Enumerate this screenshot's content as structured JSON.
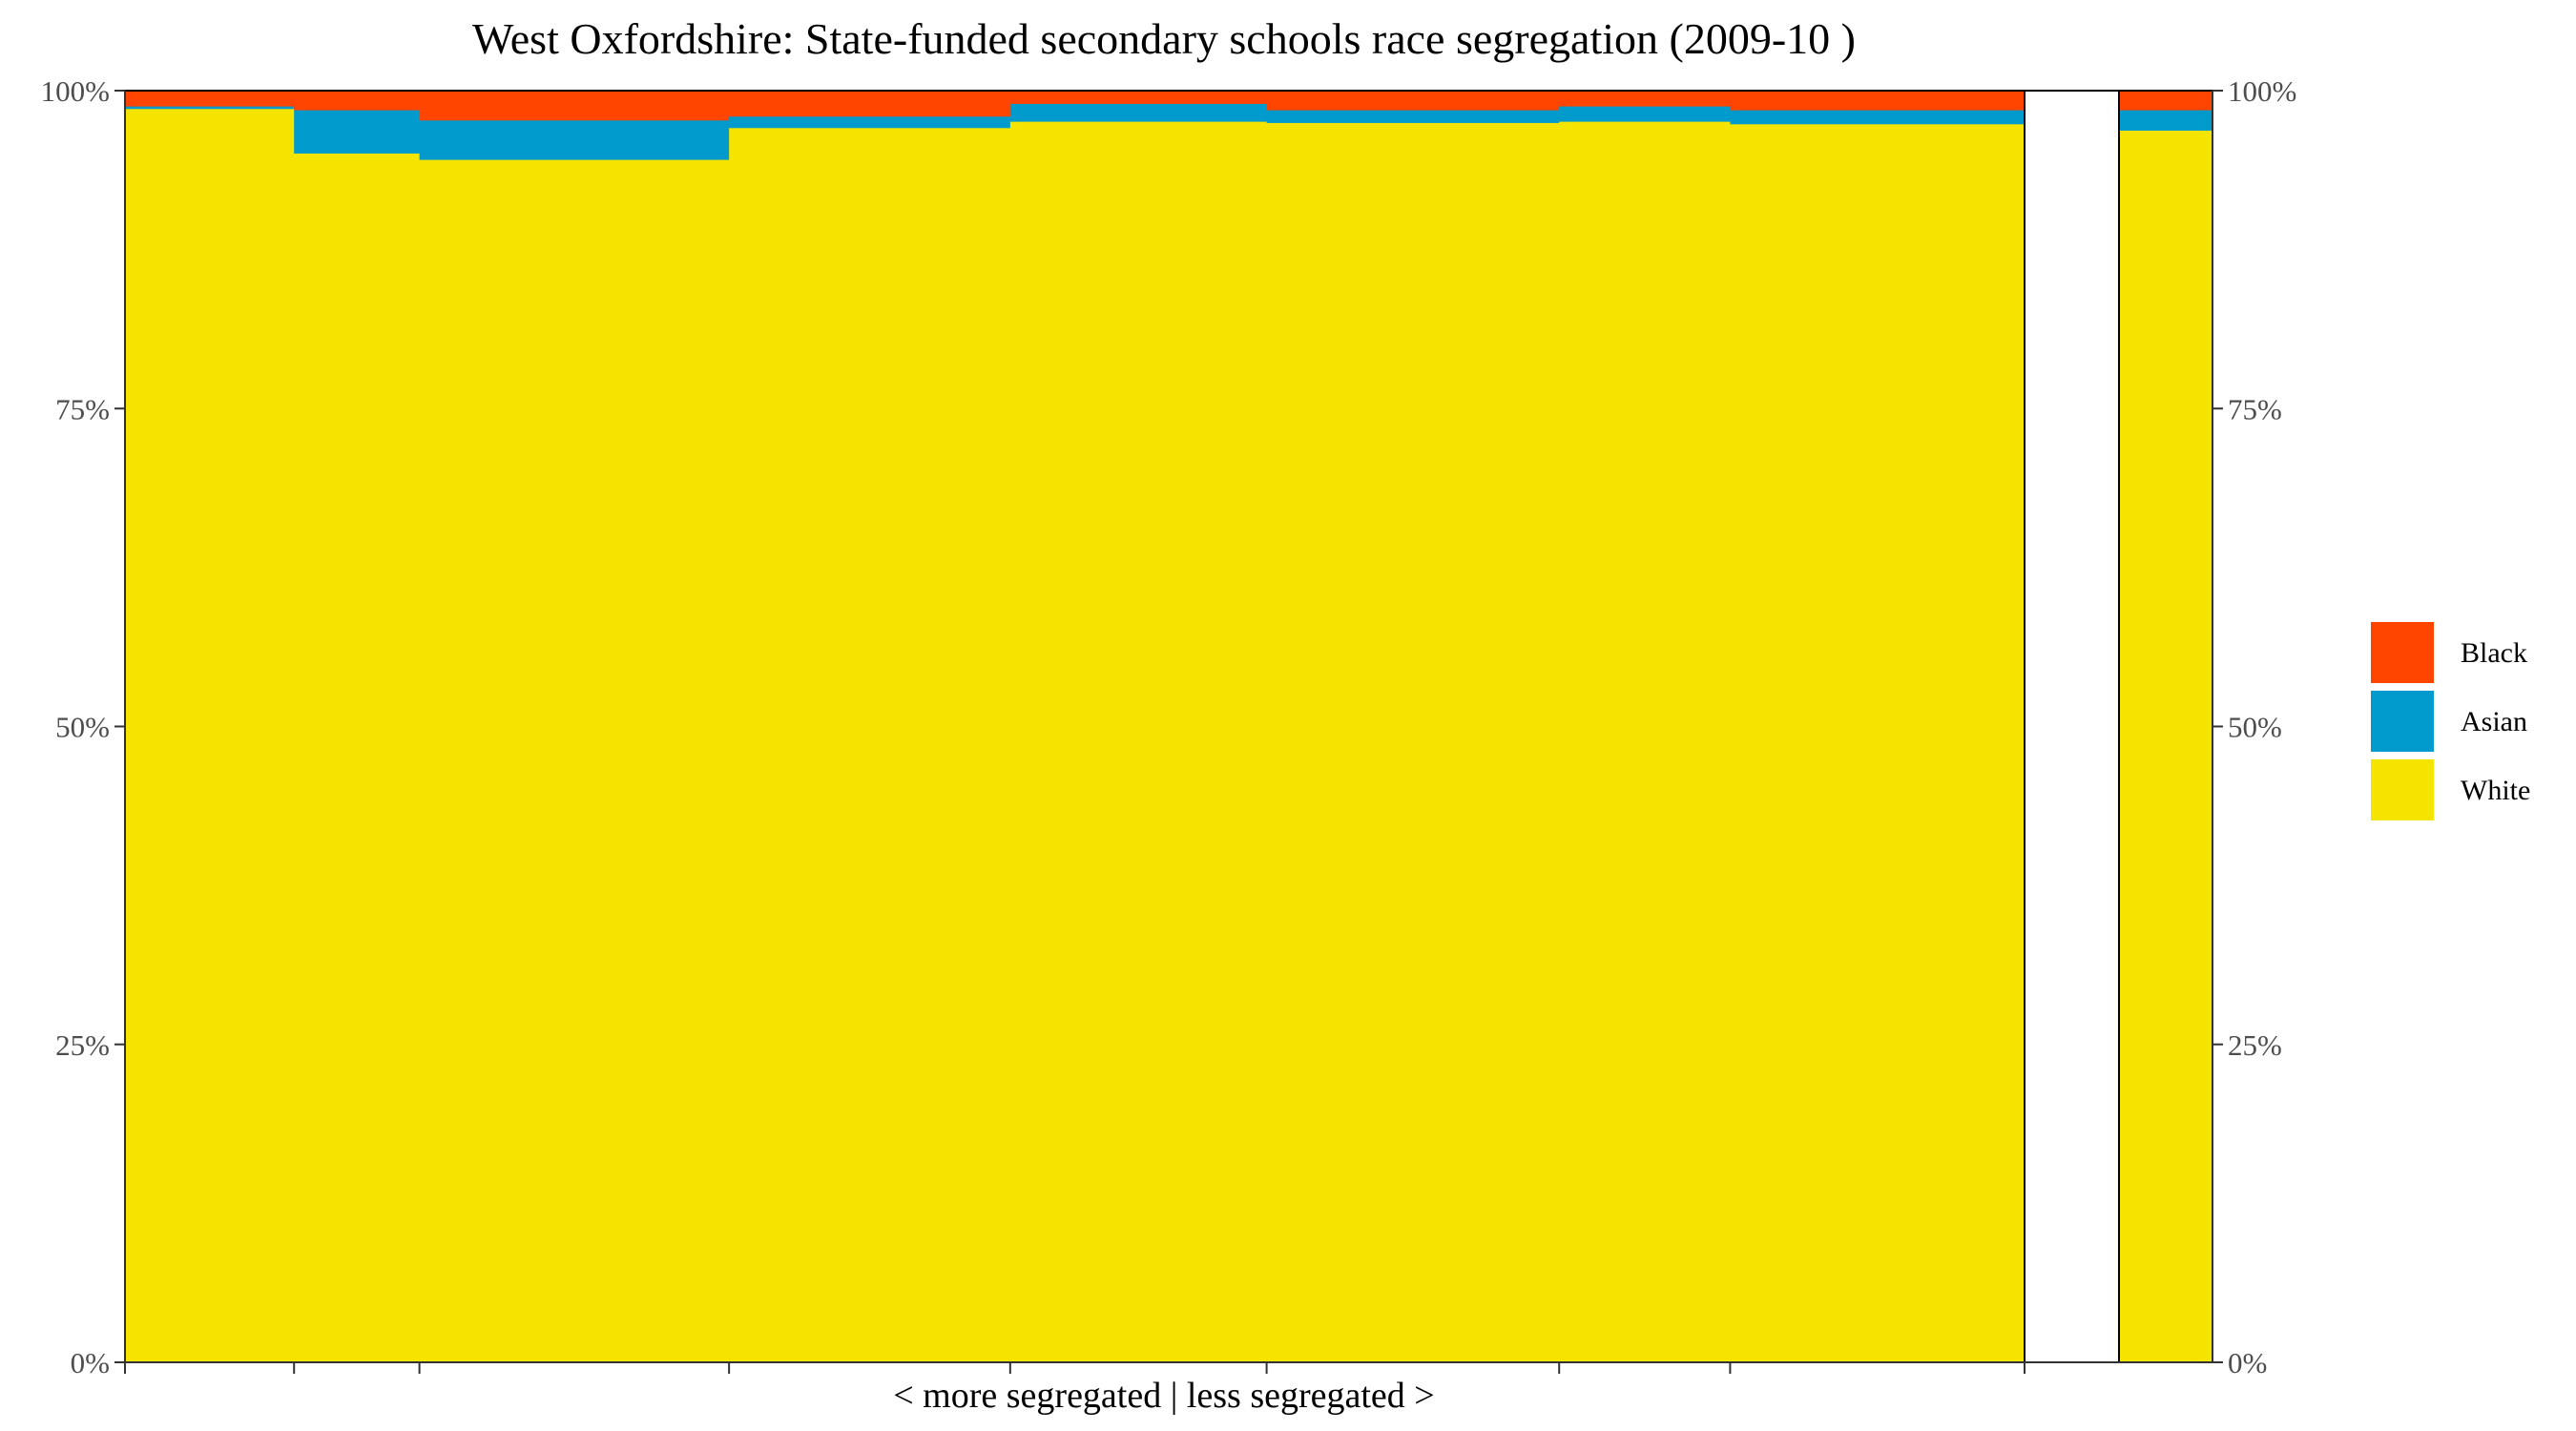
{
  "chart_data": {
    "type": "bar",
    "title": "West Oxfordshire: State-funded secondary schools race segregation (2009-10 )",
    "xlabel": "< more segregated | less segregated >",
    "ylabel": "",
    "ylim": [
      0,
      1
    ],
    "yticks": [
      "0%",
      "25%",
      "50%",
      "75%",
      "100%"
    ],
    "ytick_values": [
      0,
      0.25,
      0.5,
      0.75,
      1
    ],
    "legend": {
      "placement": "right",
      "entries": [
        "Black",
        "Asian",
        "White"
      ]
    },
    "colors": {
      "Black": "#ff4500",
      "Asian": "#009acd",
      "White": "#f5e400",
      "border": "#000000"
    },
    "x_scale": [
      0,
      1
    ],
    "bars": [
      {
        "x0": 0.0,
        "x1": 0.089,
        "White": 0.986,
        "Asian": 0.002,
        "Black": 0.012
      },
      {
        "x0": 0.089,
        "x1": 0.155,
        "White": 0.951,
        "Asian": 0.034,
        "Black": 0.015
      },
      {
        "x0": 0.155,
        "x1": 0.318,
        "White": 0.946,
        "Asian": 0.031,
        "Black": 0.023
      },
      {
        "x0": 0.318,
        "x1": 0.466,
        "White": 0.971,
        "Asian": 0.009,
        "Black": 0.02
      },
      {
        "x0": 0.466,
        "x1": 0.601,
        "White": 0.976,
        "Asian": 0.014,
        "Black": 0.01
      },
      {
        "x0": 0.601,
        "x1": 0.755,
        "White": 0.975,
        "Asian": 0.01,
        "Black": 0.015
      },
      {
        "x0": 0.755,
        "x1": 0.845,
        "White": 0.976,
        "Asian": 0.012,
        "Black": 0.012
      },
      {
        "x0": 0.845,
        "x1": 1.0,
        "White": 0.974,
        "Asian": 0.011,
        "Black": 0.015
      }
    ],
    "summary_bar": {
      "White": 0.969,
      "Asian": 0.016,
      "Black": 0.015
    }
  }
}
